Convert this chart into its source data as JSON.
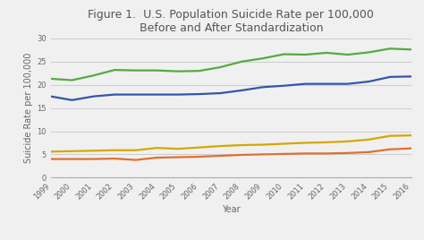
{
  "title_line1": "Figure 1.  U.S. Population Suicide Rate per 100,000",
  "title_line2": "Before and After Standardization",
  "xlabel": "Year",
  "ylabel": "Suicide Rate per 100,000",
  "years": [
    1999,
    2000,
    2001,
    2002,
    2003,
    2004,
    2005,
    2006,
    2007,
    2008,
    2009,
    2010,
    2011,
    2012,
    2013,
    2014,
    2015,
    2016
  ],
  "female": [
    4.0,
    4.0,
    4.0,
    4.1,
    3.8,
    4.3,
    4.4,
    4.5,
    4.7,
    4.9,
    5.0,
    5.1,
    5.2,
    5.2,
    5.3,
    5.5,
    6.1,
    6.3
  ],
  "female_standardized": [
    5.6,
    5.7,
    5.8,
    5.9,
    5.9,
    6.4,
    6.2,
    6.5,
    6.8,
    7.0,
    7.1,
    7.3,
    7.5,
    7.6,
    7.8,
    8.2,
    9.0,
    9.1
  ],
  "male": [
    17.5,
    16.7,
    17.5,
    17.9,
    17.9,
    17.9,
    17.9,
    18.0,
    18.2,
    18.8,
    19.5,
    19.8,
    20.2,
    20.2,
    20.2,
    20.7,
    21.7,
    21.8
  ],
  "male_standardized": [
    21.3,
    21.0,
    22.0,
    23.2,
    23.1,
    23.1,
    22.9,
    23.0,
    23.8,
    25.0,
    25.7,
    26.6,
    26.5,
    26.9,
    26.5,
    27.0,
    27.8,
    27.6
  ],
  "color_female": "#E07030",
  "color_female_std": "#D4A800",
  "color_male": "#3355AA",
  "color_male_std": "#55AA44",
  "ylim": [
    0,
    30
  ],
  "yticks": [
    0,
    5,
    10,
    15,
    20,
    25,
    30
  ],
  "background_color": "#f0f0f0",
  "plot_bg_color": "#f0f0f0",
  "grid_color": "#cccccc",
  "linewidth": 1.6,
  "title_fontsize": 9,
  "axis_label_fontsize": 7,
  "tick_fontsize": 6,
  "legend_fontsize": 7
}
